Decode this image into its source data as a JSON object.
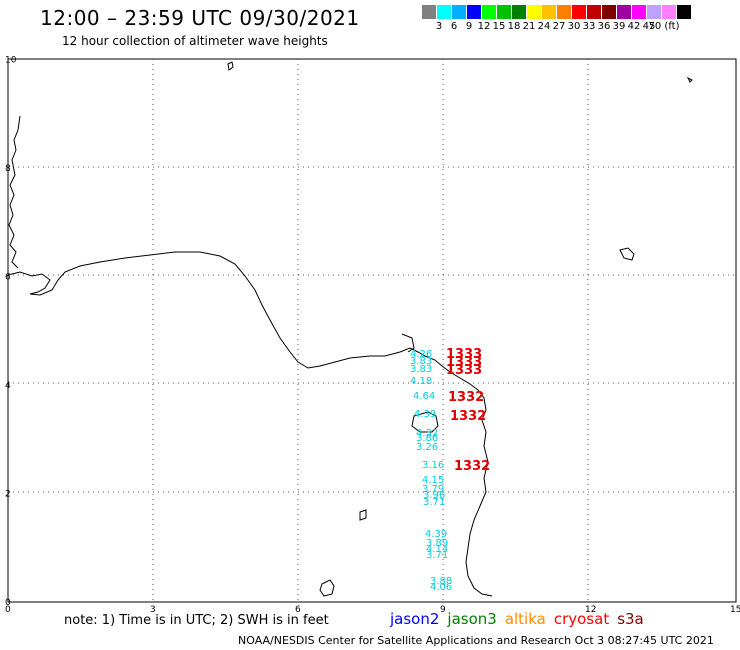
{
  "header": {
    "title": "12:00 – 23:59 UTC 09/30/2021",
    "subtitle": "12 hour collection of altimeter wave heights"
  },
  "legend": {
    "colors": [
      "#808080",
      "#00ffff",
      "#00b0ff",
      "#0000ff",
      "#00ff00",
      "#00c000",
      "#008000",
      "#ffff00",
      "#ffc000",
      "#ff8000",
      "#ff0000",
      "#c00000",
      "#800000",
      "#a000a0",
      "#ff00ff",
      "#c0a0ff",
      "#ff80ff",
      "#000000"
    ],
    "labels": [
      "3",
      "6",
      "9",
      "12",
      "15",
      "18",
      "21",
      "24",
      "27",
      "30",
      "33",
      "36",
      "39",
      "42",
      "45",
      "70 (ft)"
    ]
  },
  "axes": {
    "x_ticks": [
      "0",
      "3",
      "6",
      "9",
      "12",
      "15"
    ],
    "y_ticks": [
      "0",
      "2",
      "4",
      "6",
      "8",
      "10"
    ]
  },
  "observations": {
    "cyan_labels": [
      "4.26",
      "3.83",
      "3.83",
      "4.18",
      "4.64",
      "4.39",
      "4.32",
      "3.86",
      "3.26",
      "3.16",
      "4.15",
      "3.79",
      "3.96",
      "3.71",
      "4.39",
      "3.89",
      "4.14",
      "3.71",
      "3.88",
      "4.06"
    ],
    "red_labels": [
      "1333",
      "1333",
      "1333",
      "1332",
      "1332",
      "1332"
    ]
  },
  "satellites": [
    {
      "name": "jason2",
      "color": "#0000ff"
    },
    {
      "name": "jason3",
      "color": "#008000"
    },
    {
      "name": "altika",
      "color": "#ff8c00"
    },
    {
      "name": "cryosat",
      "color": "#ff0000"
    },
    {
      "name": "s3a",
      "color": "#800000"
    }
  ],
  "note": "note:  1) Time is in UTC;  2) SWH is in feet",
  "footer": "NOAA/NESDIS Center for Satellite Applications and Research    Oct  3 08:27:45 UTC 2021"
}
